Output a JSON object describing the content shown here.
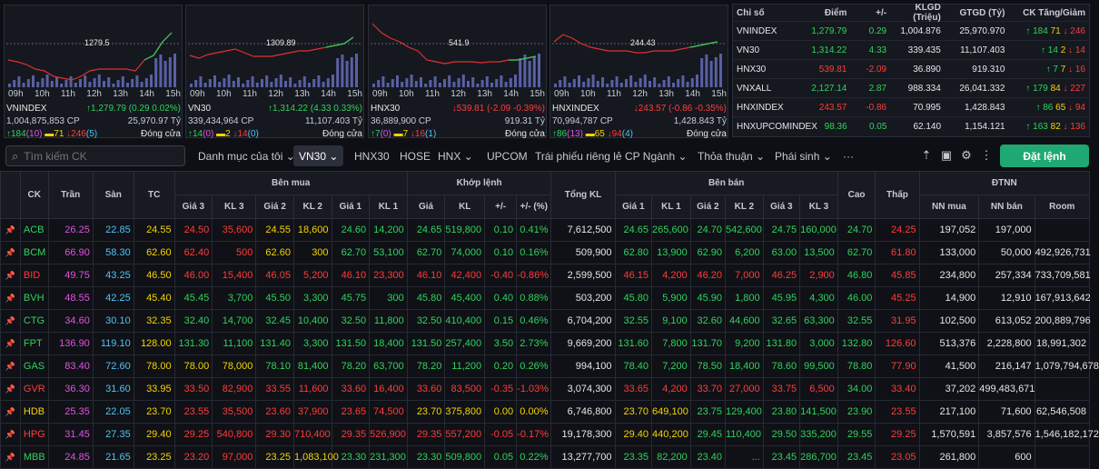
{
  "charts": [
    {
      "name": "VNINDEX",
      "ref_label": "1279.5",
      "axis": [
        "09h",
        "10h",
        "11h",
        "12h",
        "13h",
        "14h",
        "15h"
      ],
      "line1": "VNINDEX",
      "line1v": "↑1,279.79 (0.29 0.02%)",
      "vol": "1,004,875,853 CP",
      "val": "25,970.97 Tỷ",
      "up": "↑184",
      "upc": "(10)",
      "ref": "71",
      "dn": "↓246",
      "dnc": "(5)",
      "status": "Đóng cửa"
    },
    {
      "name": "VN30",
      "ref_label": "1309.89",
      "axis": [
        "09h",
        "10h",
        "11h",
        "12h",
        "13h",
        "14h",
        "15h"
      ],
      "line1": "VN30",
      "line1v": "↑1,314.22 (4.33 0.33%)",
      "vol": "339,434,964 CP",
      "val": "11,107.403 Tỷ",
      "up": "↑14",
      "upc": "(0)",
      "ref": "2",
      "dn": "↓14",
      "dnc": "(0)",
      "status": "Đóng cửa"
    },
    {
      "name": "HNX30",
      "ref_label": "541.9",
      "axis": [
        "09h",
        "10h",
        "11h",
        "12h",
        "13h",
        "14h",
        "15h"
      ],
      "line1": "HNX30",
      "line1v": "↓539.81 (-2.09 -0.39%)",
      "vol": "36,889,900 CP",
      "val": "919.31 Tỷ",
      "up": "↑7",
      "upc": "(0)",
      "ref": "7",
      "dn": "↓16",
      "dnc": "(1)",
      "status": "Đóng cửa"
    },
    {
      "name": "HNXINDEX",
      "ref_label": "244.43",
      "axis": [
        "09h",
        "10h",
        "11h",
        "12h",
        "13h",
        "14h",
        "15h"
      ],
      "line1": "HNXINDEX",
      "line1v": "↓243.57 (-0.86 -0.35%)",
      "vol": "70,994,787 CP",
      "val": "1,428.843 Tỷ",
      "up": "↑86",
      "upc": "(13)",
      "ref": "65",
      "dn": "↓94",
      "dnc": "(4)",
      "status": "Đóng cửa"
    }
  ],
  "index_table": {
    "headers": [
      "Chỉ số",
      "Điểm",
      "+/-",
      "KLGD (Triệu)",
      "GTGD (Tỷ)",
      "CK Tăng/Giảm"
    ],
    "rows": [
      {
        "name": "VNINDEX",
        "point": "1,279.79",
        "chg": "0.29",
        "vol": "1,004.876",
        "val": "25,970.970",
        "up": "↑ 184",
        "ref": "71",
        "dn": "↓ 246",
        "dir": "up"
      },
      {
        "name": "VN30",
        "point": "1,314.22",
        "chg": "4.33",
        "vol": "339.435",
        "val": "11,107.403",
        "up": "↑ 14",
        "ref": "2",
        "dn": "↓ 14",
        "dir": "up"
      },
      {
        "name": "HNX30",
        "point": "539.81",
        "chg": "-2.09",
        "vol": "36.890",
        "val": "919.310",
        "up": "↑ 7",
        "ref": "7",
        "dn": "↓ 16",
        "dir": "dn"
      },
      {
        "name": "VNXALL",
        "point": "2,127.14",
        "chg": "2.87",
        "vol": "988.334",
        "val": "26,041.332",
        "up": "↑ 179",
        "ref": "84",
        "dn": "↓ 227",
        "dir": "up"
      },
      {
        "name": "HNXINDEX",
        "point": "243.57",
        "chg": "-0.86",
        "vol": "70.995",
        "val": "1,428.843",
        "up": "↑ 86",
        "ref": "65",
        "dn": "↓ 94",
        "dir": "dn"
      },
      {
        "name": "HNXUPCOMINDEX",
        "point": "98.36",
        "chg": "0.05",
        "vol": "62.140",
        "val": "1,154.121",
        "up": "↑ 163",
        "ref": "82",
        "dn": "↓ 136",
        "dir": "up"
      }
    ]
  },
  "toolbar": {
    "search_placeholder": "Tìm kiếm CK",
    "tabs": [
      "Danh mục của tôi ⌄",
      "VN30 ⌄",
      "HNX30",
      "HOSE",
      "HNX ⌄",
      "UPCOM",
      "Trái phiếu riêng lẻ",
      "CP Ngành ⌄",
      "Thỏa thuận ⌄",
      "Phái sinh ⌄",
      "···"
    ],
    "order_label": "Đặt lệnh"
  },
  "board": {
    "groups": {
      "buy": "Bên mua",
      "match": "Khớp lệnh",
      "sell": "Bên bán",
      "foreign": "ĐTNN"
    },
    "headers": [
      "CK",
      "Trần",
      "Sàn",
      "TC",
      "Giá 3",
      "KL 3",
      "Giá 2",
      "KL 2",
      "Giá 1",
      "KL 1",
      "Giá",
      "KL",
      "+/-",
      "+/- (%)",
      "Tổng KL",
      "Giá 1",
      "KL 1",
      "Giá 2",
      "KL 2",
      "Giá 3",
      "KL 3",
      "Cao",
      "Thấp",
      "NN mua",
      "NN bán",
      "Room"
    ],
    "rows": [
      [
        "ACB",
        "26.25",
        "22.85",
        "24.55",
        "24.50",
        "35,600",
        "24.55",
        "18,600",
        "24.60",
        "14,200",
        "24.65",
        "519,800",
        "0.10",
        "0.41%",
        "7,612,500",
        "24.65",
        "265,600",
        "24.70",
        "542,600",
        "24.75",
        "160,000",
        "24.70",
        "24.25",
        "197,052",
        "197,000",
        ""
      ],
      [
        "BCM",
        "66.90",
        "58.30",
        "62.60",
        "62.40",
        "500",
        "62.60",
        "300",
        "62.70",
        "53,100",
        "62.70",
        "74,000",
        "0.10",
        "0.16%",
        "509,900",
        "62.80",
        "13,900",
        "62.90",
        "6,200",
        "63.00",
        "13,500",
        "62.70",
        "61.80",
        "133,000",
        "50,000",
        "492,926,731"
      ],
      [
        "BID",
        "49.75",
        "43.25",
        "46.50",
        "46.00",
        "15,400",
        "46.05",
        "5,200",
        "46.10",
        "23,300",
        "46.10",
        "42,400",
        "-0.40",
        "-0.86%",
        "2,599,500",
        "46.15",
        "4,200",
        "46.20",
        "7,000",
        "46.25",
        "2,900",
        "46.80",
        "45.85",
        "234,800",
        "257,334",
        "733,709,581"
      ],
      [
        "BVH",
        "48.55",
        "42.25",
        "45.40",
        "45.45",
        "3,700",
        "45.50",
        "3,300",
        "45.75",
        "300",
        "45.80",
        "45,400",
        "0.40",
        "0.88%",
        "503,200",
        "45.80",
        "5,900",
        "45.90",
        "1,800",
        "45.95",
        "4,300",
        "46.00",
        "45.25",
        "14,900",
        "12,910",
        "167,913,642"
      ],
      [
        "CTG",
        "34.60",
        "30.10",
        "32.35",
        "32.40",
        "14,700",
        "32.45",
        "10,400",
        "32.50",
        "11,800",
        "32.50",
        "410,400",
        "0.15",
        "0.46%",
        "6,704,200",
        "32.55",
        "9,100",
        "32.60",
        "44,600",
        "32.65",
        "63,300",
        "32.55",
        "31.95",
        "102,500",
        "613,052",
        "200,889,796"
      ],
      [
        "FPT",
        "136.90",
        "119.10",
        "128.00",
        "131.30",
        "11,100",
        "131.40",
        "3,300",
        "131.50",
        "18,400",
        "131.50",
        "257,400",
        "3.50",
        "2.73%",
        "9,669,200",
        "131.60",
        "7,800",
        "131.70",
        "9,200",
        "131.80",
        "3,000",
        "132.80",
        "126.60",
        "513,376",
        "2,228,800",
        "18,991,302"
      ],
      [
        "GAS",
        "83.40",
        "72.60",
        "78.00",
        "78.00",
        "78,000",
        "78.10",
        "81,400",
        "78.20",
        "63,700",
        "78.20",
        "11,200",
        "0.20",
        "0.26%",
        "994,100",
        "78.40",
        "7,200",
        "78.50",
        "18,400",
        "78.60",
        "99,500",
        "78.80",
        "77.90",
        "41,500",
        "216,147",
        "1,079,794,678"
      ],
      [
        "GVR",
        "36.30",
        "31.60",
        "33.95",
        "33.50",
        "82,900",
        "33.55",
        "11,600",
        "33.60",
        "16,400",
        "33.60",
        "83,500",
        "-0.35",
        "-1.03%",
        "3,074,300",
        "33.65",
        "4,200",
        "33.70",
        "27,000",
        "33.75",
        "6,500",
        "34.00",
        "33.40",
        "37,202",
        "499,483,671",
        ""
      ],
      [
        "HDB",
        "25.35",
        "22.05",
        "23.70",
        "23.55",
        "35,500",
        "23.60",
        "37,900",
        "23.65",
        "74,500",
        "23.70",
        "375,800",
        "0.00",
        "0.00%",
        "6,746,800",
        "23.70",
        "649,100",
        "23.75",
        "129,400",
        "23.80",
        "141,500",
        "23.90",
        "23.55",
        "217,100",
        "71,600",
        "62,546,508"
      ],
      [
        "HPG",
        "31.45",
        "27.35",
        "29.40",
        "29.25",
        "540,800",
        "29.30",
        "710,400",
        "29.35",
        "526,900",
        "29.35",
        "557,200",
        "-0.05",
        "-0.17%",
        "19,178,300",
        "29.40",
        "440,200",
        "29.45",
        "110,400",
        "29.50",
        "335,200",
        "29.55",
        "29.25",
        "1,570,591",
        "3,857,576",
        "1,546,182,172"
      ],
      [
        "MBB",
        "24.85",
        "21.65",
        "23.25",
        "23.20",
        "97,000",
        "23.25",
        "1,083,100",
        "23.30",
        "231,300",
        "23.30",
        "509,800",
        "0.05",
        "0.22%",
        "13,277,700",
        "23.35",
        "82,200",
        "23.40",
        "...",
        "23.45",
        "286,700",
        "23.45",
        "23.05",
        "261,800",
        "600",
        ""
      ]
    ]
  }
}
